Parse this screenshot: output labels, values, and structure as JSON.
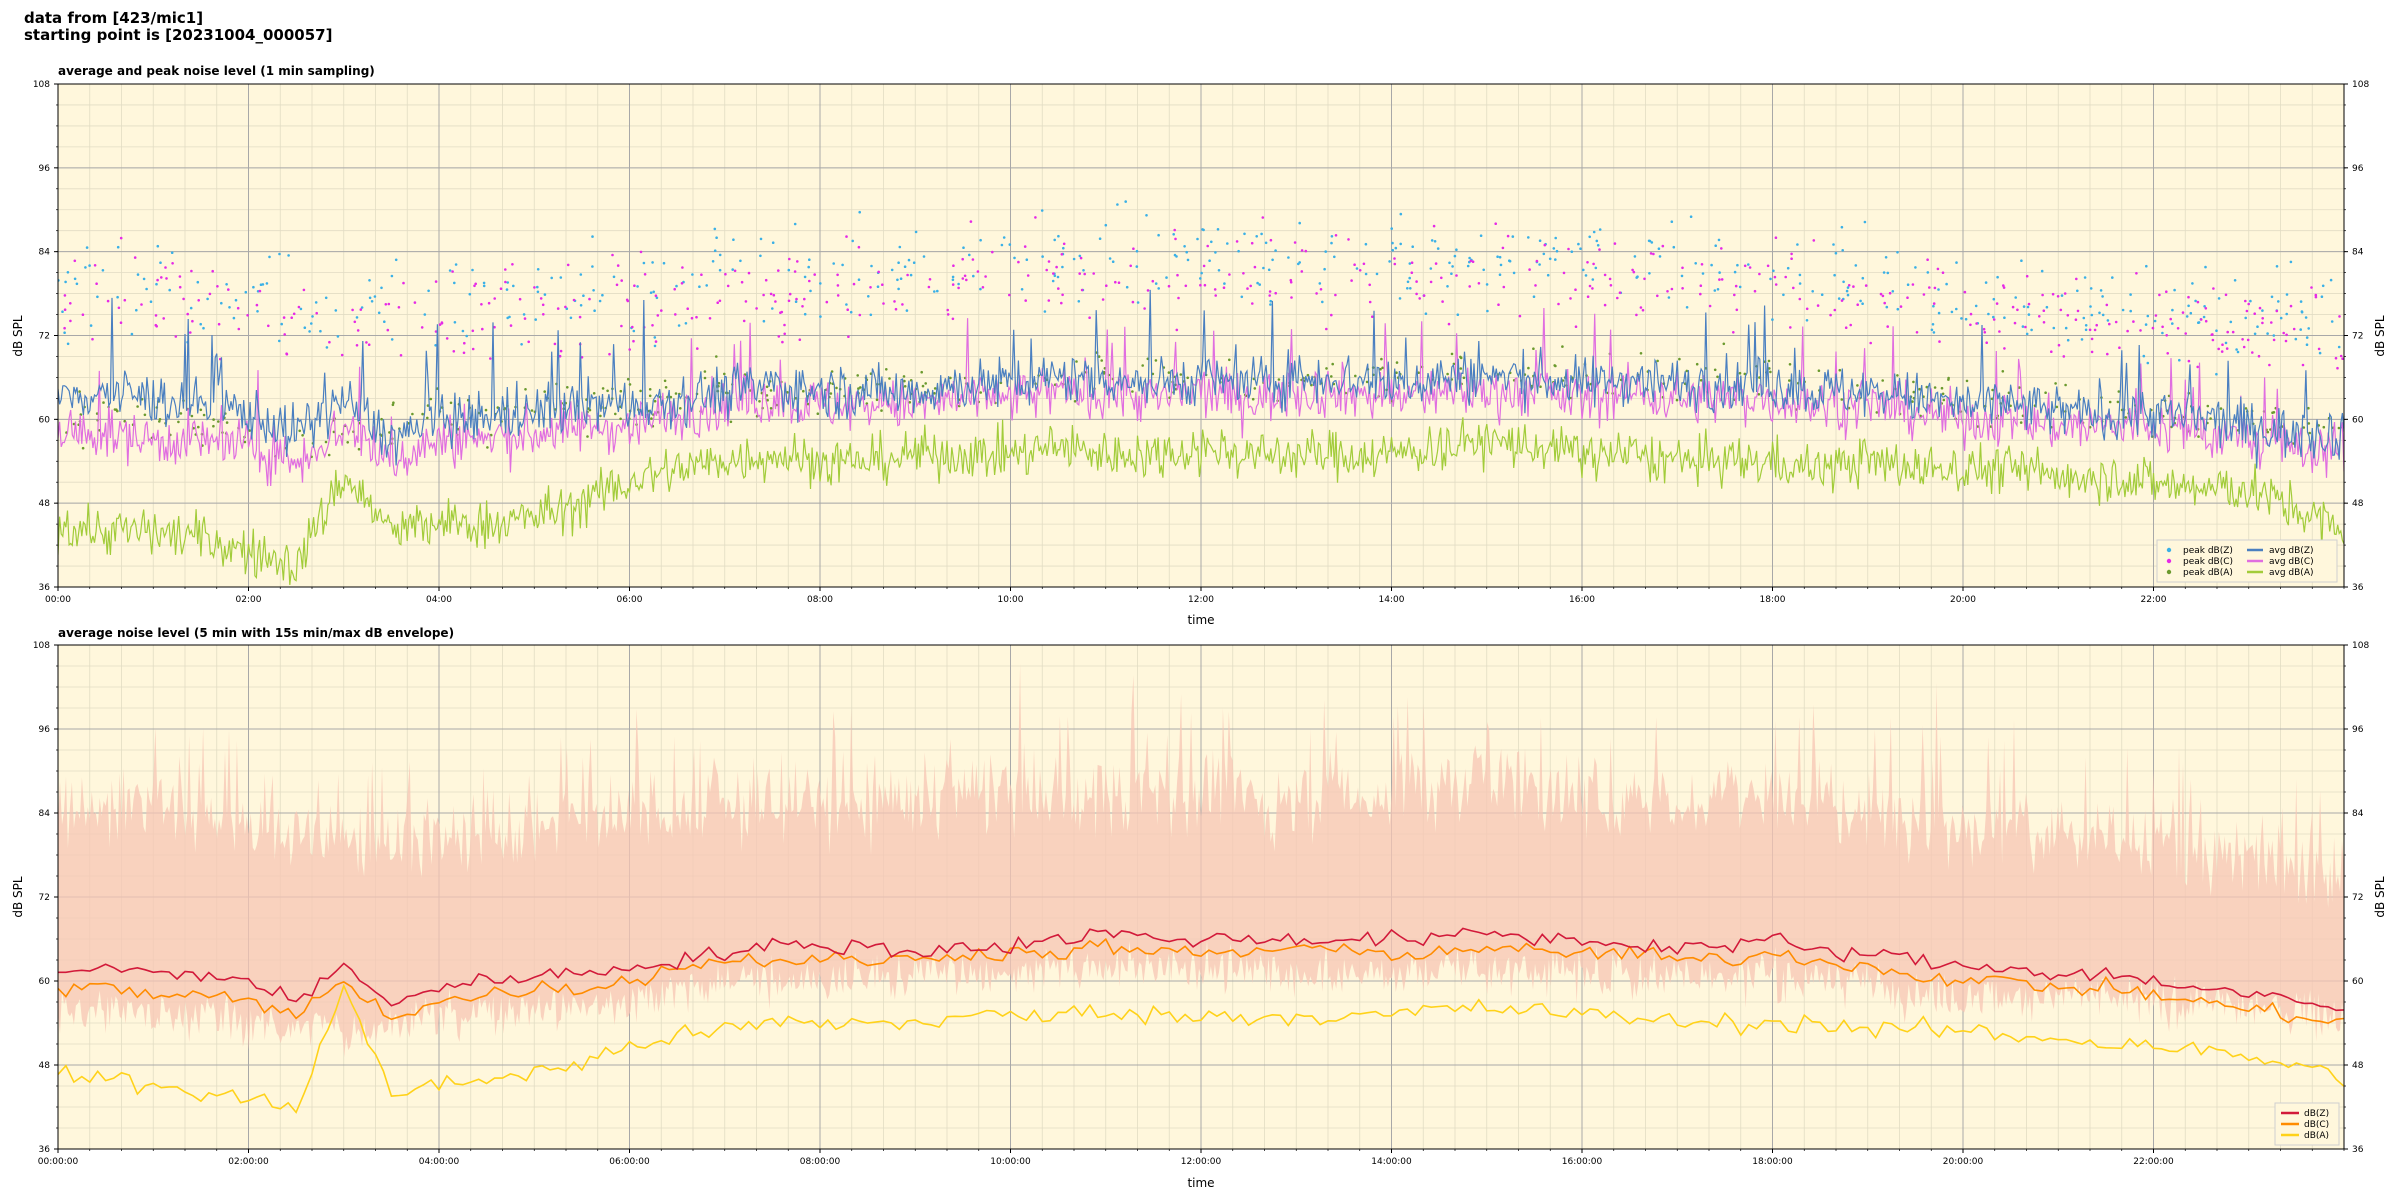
{
  "figure": {
    "line1": "data from [423/mic1]",
    "line2": "starting point is [20231004_000057]"
  },
  "colors": {
    "plot_bg": "#fff7dc",
    "grid_major": "#a8a8a8",
    "grid_minor": "#e2dcc4",
    "peak_z": "#3ab0e6",
    "peak_c": "#e62ae6",
    "peak_a": "#6b9a2e",
    "avg_z": "#4a7fc0",
    "avg_c": "#e06ee0",
    "avg_a": "#a2cc3a",
    "z": "#d21a3a",
    "c": "#ff8c00",
    "a": "#ffd21a",
    "envelope": "#f7c6b4"
  },
  "chart_data": [
    {
      "type": "line",
      "title": "average and peak noise level (1 min sampling)",
      "xlabel": "time",
      "ylabel": "dB SPL",
      "xlim": [
        0,
        24
      ],
      "ylim": [
        36,
        108
      ],
      "yticks": [
        36,
        48,
        60,
        72,
        84,
        96,
        108
      ],
      "xticks": [
        0,
        2,
        4,
        6,
        8,
        10,
        12,
        14,
        16,
        18,
        20,
        22
      ],
      "xticklabels": [
        "00:00",
        "02:00",
        "04:00",
        "06:00",
        "08:00",
        "10:00",
        "12:00",
        "14:00",
        "16:00",
        "18:00",
        "20:00",
        "22:00"
      ],
      "grid": true,
      "legend_position": "lower-right",
      "legend": [
        "peak dB(Z)",
        "peak dB(C)",
        "peak dB(A)",
        "avg dB(Z)",
        "avg dB(C)",
        "avg dB(A)"
      ],
      "series": [
        {
          "name": "avg dB(Z)",
          "x": [
            0,
            0.5,
            1,
            1.5,
            2,
            2.5,
            3,
            3.5,
            4,
            4.5,
            5,
            5.5,
            6,
            6.5,
            7,
            7.5,
            8,
            8.5,
            9,
            9.5,
            10,
            10.5,
            11,
            11.5,
            12,
            12.5,
            13,
            13.5,
            14,
            14.5,
            15,
            15.5,
            16,
            16.5,
            17,
            17.5,
            18,
            18.5,
            19,
            19.5,
            20,
            20.5,
            21,
            21.5,
            22,
            22.5,
            23,
            23.5,
            24
          ],
          "values": [
            63,
            64,
            63,
            62,
            61,
            58,
            63,
            57,
            60,
            60,
            61,
            62,
            62,
            63,
            64,
            65,
            64,
            64,
            64,
            65,
            65,
            66,
            66,
            65,
            66,
            65,
            66,
            66,
            65,
            66,
            66,
            66,
            65,
            66,
            65,
            65,
            65,
            64,
            64,
            63,
            62,
            62,
            61,
            61,
            61,
            60,
            59,
            58,
            58
          ]
        },
        {
          "name": "avg dB(C)",
          "x": [
            0,
            0.5,
            1,
            1.5,
            2,
            2.5,
            3,
            3.5,
            4,
            4.5,
            5,
            5.5,
            6,
            6.5,
            7,
            7.5,
            8,
            8.5,
            9,
            9.5,
            10,
            10.5,
            11,
            11.5,
            12,
            12.5,
            13,
            13.5,
            14,
            14.5,
            15,
            15.5,
            16,
            16.5,
            17,
            17.5,
            18,
            18.5,
            19,
            19.5,
            20,
            20.5,
            21,
            21.5,
            22,
            22.5,
            23,
            23.5,
            24
          ],
          "values": [
            58,
            58,
            57,
            57,
            56,
            54,
            59,
            54,
            57,
            57,
            58,
            59,
            59,
            61,
            62,
            63,
            62,
            62,
            62,
            63,
            63,
            64,
            64,
            63,
            64,
            63,
            64,
            64,
            63,
            64,
            64,
            64,
            63,
            64,
            63,
            63,
            63,
            62,
            62,
            61,
            60,
            60,
            59,
            59,
            59,
            58,
            57,
            56,
            56
          ]
        },
        {
          "name": "avg dB(A)",
          "x": [
            0,
            0.5,
            1,
            1.5,
            2,
            2.5,
            3,
            3.5,
            4,
            4.5,
            5,
            5.5,
            6,
            6.5,
            7,
            7.5,
            8,
            8.5,
            9,
            9.5,
            10,
            10.5,
            11,
            11.5,
            12,
            12.5,
            13,
            13.5,
            14,
            14.5,
            15,
            15.5,
            16,
            16.5,
            17,
            17.5,
            18,
            18.5,
            19,
            19.5,
            20,
            20.5,
            21,
            21.5,
            22,
            22.5,
            23,
            23.5,
            24
          ],
          "values": [
            45,
            44,
            44,
            43,
            41,
            39,
            52,
            44,
            45,
            45,
            46,
            48,
            51,
            53,
            54,
            55,
            54,
            54,
            55,
            55,
            55,
            56,
            55,
            55,
            56,
            55,
            55,
            55,
            55,
            56,
            57,
            56,
            55,
            55,
            54,
            54,
            54,
            53,
            54,
            53,
            53,
            53,
            52,
            52,
            51,
            50,
            50,
            47,
            44
          ]
        },
        {
          "name": "peak dB(Z)",
          "x": [
            0,
            1,
            2,
            3,
            4,
            5,
            6,
            7,
            8,
            9,
            10,
            11,
            12,
            13,
            14,
            15,
            16,
            17,
            18,
            19,
            20,
            21,
            22,
            23,
            24
          ],
          "values": [
            78,
            80,
            77,
            75,
            76,
            77,
            78,
            80,
            80,
            81,
            82,
            83,
            83,
            82,
            82,
            83,
            82,
            82,
            83,
            80,
            78,
            77,
            76,
            75,
            74
          ]
        },
        {
          "name": "peak dB(C)",
          "x": [
            0,
            1,
            2,
            3,
            4,
            5,
            6,
            7,
            8,
            9,
            10,
            11,
            12,
            13,
            14,
            15,
            16,
            17,
            18,
            19,
            20,
            21,
            22,
            23,
            24
          ],
          "values": [
            76,
            78,
            75,
            73,
            74,
            75,
            76,
            78,
            78,
            79,
            80,
            81,
            81,
            80,
            80,
            81,
            80,
            80,
            81,
            78,
            76,
            75,
            74,
            73,
            72
          ]
        },
        {
          "name": "peak dB(A)",
          "x": [
            0,
            1,
            2,
            3,
            4,
            5,
            6,
            7,
            8,
            9,
            10,
            11,
            12,
            13,
            14,
            15,
            16,
            17,
            18,
            19,
            20,
            21,
            22,
            23,
            24
          ],
          "values": [
            60,
            60,
            58,
            58,
            60,
            61,
            63,
            64,
            64,
            65,
            65,
            66,
            66,
            66,
            66,
            67,
            66,
            66,
            66,
            64,
            63,
            62,
            61,
            60,
            58
          ]
        }
      ]
    },
    {
      "type": "line",
      "title": "average noise level (5 min with 15s min/max dB envelope)",
      "xlabel": "time",
      "ylabel": "dB SPL",
      "xlim": [
        0,
        24
      ],
      "ylim": [
        36,
        108
      ],
      "yticks": [
        36,
        48,
        60,
        72,
        84,
        96,
        108
      ],
      "xticks": [
        0,
        2,
        4,
        6,
        8,
        10,
        12,
        14,
        16,
        18,
        20,
        22
      ],
      "xticklabels": [
        "00:00:00",
        "02:00:00",
        "04:00:00",
        "06:00:00",
        "08:00:00",
        "10:00:00",
        "12:00:00",
        "14:00:00",
        "16:00:00",
        "18:00:00",
        "20:00:00",
        "22:00:00"
      ],
      "grid": true,
      "legend_position": "lower-right",
      "legend": [
        "dB(Z)",
        "dB(C)",
        "dB(A)"
      ],
      "series": [
        {
          "name": "dB(Z)",
          "x": [
            0,
            0.5,
            1,
            1.5,
            2,
            2.5,
            3,
            3.5,
            4,
            4.5,
            5,
            5.5,
            6,
            6.5,
            7,
            7.5,
            8,
            8.5,
            9,
            9.5,
            10,
            10.5,
            11,
            11.5,
            12,
            12.5,
            13,
            13.5,
            14,
            14.5,
            15,
            15.5,
            16,
            16.5,
            17,
            17.5,
            18,
            18.5,
            19,
            19.5,
            20,
            20.5,
            21,
            21.5,
            22,
            22.5,
            23,
            23.5,
            24
          ],
          "values": [
            61,
            62,
            61,
            61,
            60,
            57,
            62,
            57,
            59,
            60,
            61,
            61,
            62,
            63,
            64,
            65,
            65,
            65,
            64,
            65,
            65,
            66,
            67,
            66,
            66,
            66,
            66,
            66,
            66,
            66,
            67,
            66,
            66,
            65,
            65,
            65,
            66,
            64,
            64,
            63,
            62,
            62,
            61,
            61,
            60,
            59,
            58,
            57,
            56
          ]
        },
        {
          "name": "dB(C)",
          "x": [
            0,
            0.5,
            1,
            1.5,
            2,
            2.5,
            3,
            3.5,
            4,
            4.5,
            5,
            5.5,
            6,
            6.5,
            7,
            7.5,
            8,
            8.5,
            9,
            9.5,
            10,
            10.5,
            11,
            11.5,
            12,
            12.5,
            13,
            13.5,
            14,
            14.5,
            15,
            15.5,
            16,
            16.5,
            17,
            17.5,
            18,
            18.5,
            19,
            19.5,
            20,
            20.5,
            21,
            21.5,
            22,
            22.5,
            23,
            23.5,
            24
          ],
          "values": [
            59,
            59,
            58,
            58,
            57,
            55,
            60,
            55,
            57,
            58,
            59,
            59,
            60,
            62,
            63,
            63,
            63,
            63,
            63,
            64,
            64,
            64,
            65,
            64,
            64,
            64,
            65,
            64,
            64,
            64,
            65,
            64,
            64,
            64,
            63,
            63,
            64,
            63,
            62,
            61,
            60,
            60,
            59,
            59,
            58,
            57,
            56,
            55,
            54
          ]
        },
        {
          "name": "dB(A)",
          "x": [
            0,
            0.5,
            1,
            1.5,
            2,
            2.5,
            3,
            3.5,
            4,
            4.5,
            5,
            5.5,
            6,
            6.5,
            7,
            7.5,
            8,
            8.5,
            9,
            9.5,
            10,
            10.5,
            11,
            11.5,
            12,
            12.5,
            13,
            13.5,
            14,
            14.5,
            15,
            15.5,
            16,
            16.5,
            17,
            17.5,
            18,
            18.5,
            19,
            19.5,
            20,
            20.5,
            21,
            21.5,
            22,
            22.5,
            23,
            23.5,
            24
          ],
          "values": [
            47,
            46,
            45,
            44,
            43,
            42,
            59,
            44,
            45,
            46,
            47,
            48,
            51,
            52,
            53,
            54,
            54,
            54,
            54,
            55,
            55,
            55,
            56,
            55,
            55,
            55,
            55,
            55,
            55,
            56,
            56,
            56,
            55,
            55,
            54,
            54,
            54,
            54,
            53,
            53,
            53,
            52,
            52,
            51,
            51,
            50,
            49,
            48,
            46
          ]
        },
        {
          "name": "max envelope",
          "x": [
            0,
            1,
            2,
            3,
            4,
            5,
            6,
            7,
            8,
            9,
            10,
            11,
            12,
            13,
            14,
            15,
            16,
            17,
            18,
            19,
            20,
            21,
            22,
            23,
            24
          ],
          "values": [
            84,
            85,
            82,
            80,
            80,
            82,
            84,
            85,
            85,
            86,
            86,
            87,
            87,
            86,
            87,
            88,
            86,
            86,
            87,
            84,
            82,
            81,
            79,
            78,
            76
          ]
        },
        {
          "name": "min envelope",
          "x": [
            0,
            1,
            2,
            3,
            4,
            5,
            6,
            7,
            8,
            9,
            10,
            11,
            12,
            13,
            14,
            15,
            16,
            17,
            18,
            19,
            20,
            21,
            22,
            23,
            24
          ],
          "values": [
            56,
            56,
            54,
            53,
            55,
            56,
            57,
            60,
            60,
            61,
            61,
            62,
            62,
            61,
            61,
            62,
            61,
            61,
            61,
            60,
            58,
            58,
            57,
            56,
            55
          ]
        }
      ]
    }
  ]
}
